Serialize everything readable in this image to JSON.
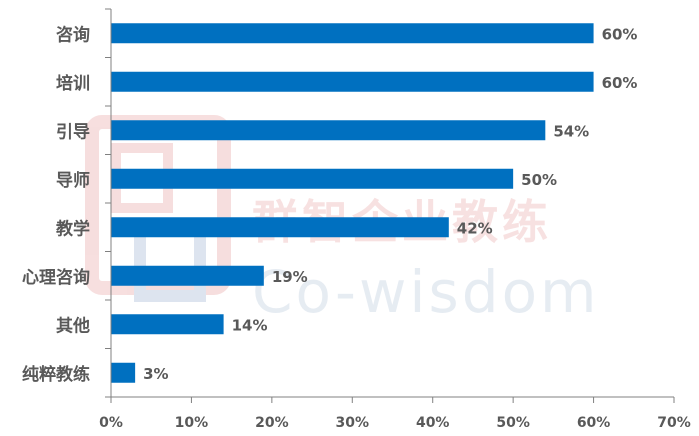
{
  "chart_data": {
    "type": "bar",
    "orientation": "horizontal",
    "categories": [
      "咨询",
      "培训",
      "引导",
      "导师",
      "教学",
      "心理咨询",
      "其他",
      "纯粹教练"
    ],
    "values": [
      60,
      60,
      54,
      50,
      42,
      19,
      14,
      3
    ],
    "data_labels": [
      "60%",
      "60%",
      "54%",
      "50%",
      "42%",
      "19%",
      "14%",
      "3%"
    ],
    "xlim": [
      0,
      70
    ],
    "x_ticks": [
      "0%",
      "10%",
      "20%",
      "30%",
      "40%",
      "50%",
      "60%",
      "70%"
    ],
    "bar_color": "#0070C0",
    "grid": false,
    "title": "",
    "xlabel": "",
    "ylabel": ""
  },
  "watermark": {
    "cn": "群智企业教练",
    "en": "Co-wisdom"
  }
}
